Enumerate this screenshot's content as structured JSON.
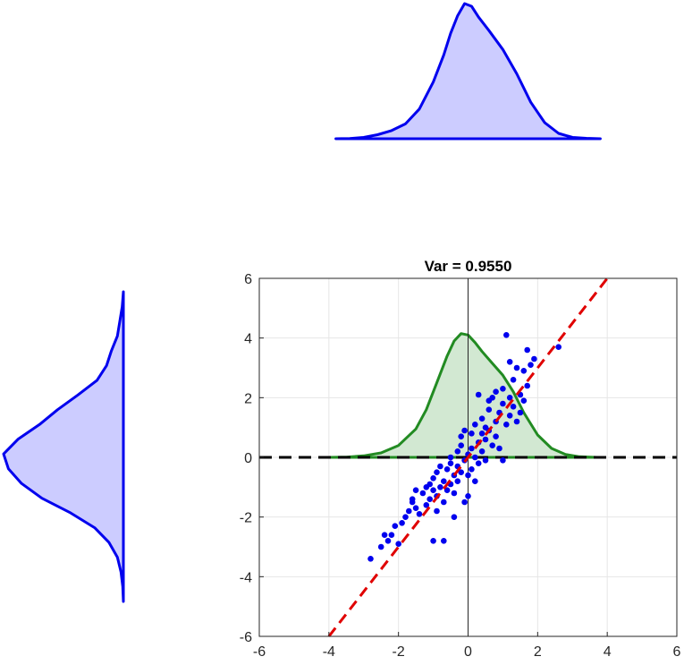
{
  "chart_data": [
    {
      "type": "area",
      "role": "top-marginal-density",
      "x": [
        -3.8,
        -3.4,
        -3.0,
        -2.6,
        -2.2,
        -1.8,
        -1.4,
        -1.0,
        -0.7,
        -0.5,
        -0.3,
        -0.1,
        0.1,
        0.3,
        0.6,
        1.0,
        1.4,
        1.8,
        2.2,
        2.6,
        3.0,
        3.4,
        3.8
      ],
      "values": [
        0.0,
        0.002,
        0.01,
        0.03,
        0.06,
        0.11,
        0.22,
        0.42,
        0.62,
        0.78,
        0.91,
        1.0,
        0.98,
        0.9,
        0.8,
        0.66,
        0.48,
        0.27,
        0.12,
        0.04,
        0.01,
        0.003,
        0.0
      ],
      "colors": {
        "line": "#0000ee",
        "fill": "#ccccff"
      }
    },
    {
      "type": "area",
      "role": "left-marginal-density",
      "y": [
        5.5,
        5.0,
        4.5,
        4.0,
        3.5,
        3.0,
        2.5,
        2.0,
        1.5,
        1.0,
        0.5,
        0.0,
        -0.5,
        -1.0,
        -1.5,
        -2.0,
        -2.5,
        -3.0,
        -3.5,
        -4.0,
        -4.5,
        -5.0
      ],
      "values": [
        0.0,
        0.01,
        0.03,
        0.05,
        0.1,
        0.14,
        0.22,
        0.38,
        0.55,
        0.7,
        0.88,
        1.0,
        0.96,
        0.85,
        0.68,
        0.44,
        0.24,
        0.12,
        0.05,
        0.02,
        0.005,
        0.0
      ],
      "colors": {
        "line": "#0000ee",
        "fill": "#ccccff"
      }
    },
    {
      "type": "scatter",
      "title": "Var = 0.9550",
      "xlim": [
        -6,
        6
      ],
      "ylim": [
        -6,
        6
      ],
      "xticks": [
        "-6",
        "-4",
        "-2",
        "0",
        "2",
        "4",
        "6"
      ],
      "yticks": [
        "6",
        "4",
        "2",
        "0",
        "-2",
        "-4",
        "-6"
      ],
      "grid": true,
      "points": [
        [
          -2.8,
          -3.4
        ],
        [
          -2.5,
          -3.0
        ],
        [
          -2.4,
          -2.6
        ],
        [
          -2.2,
          -2.6
        ],
        [
          -2.1,
          -2.3
        ],
        [
          -2.0,
          -2.9
        ],
        [
          -1.9,
          -2.2
        ],
        [
          -1.8,
          -2.0
        ],
        [
          -1.7,
          -1.8
        ],
        [
          -1.6,
          -1.4
        ],
        [
          -1.5,
          -1.7
        ],
        [
          -1.5,
          -1.1
        ],
        [
          -1.4,
          -1.9
        ],
        [
          -1.3,
          -1.2
        ],
        [
          -1.2,
          -1.0
        ],
        [
          -1.2,
          -1.6
        ],
        [
          -1.1,
          -0.9
        ],
        [
          -1.1,
          -1.4
        ],
        [
          -1.0,
          -2.8
        ],
        [
          -1.0,
          -1.1
        ],
        [
          -1.0,
          -0.7
        ],
        [
          -0.9,
          -1.3
        ],
        [
          -0.9,
          -0.5
        ],
        [
          -0.8,
          -1.0
        ],
        [
          -0.8,
          -0.3
        ],
        [
          -0.7,
          -2.8
        ],
        [
          -0.7,
          -1.5
        ],
        [
          -0.7,
          -0.8
        ],
        [
          -0.6,
          -0.4
        ],
        [
          -0.6,
          -1.1
        ],
        [
          -0.5,
          -0.9
        ],
        [
          -0.5,
          -0.2
        ],
        [
          -0.5,
          0.0
        ],
        [
          -0.4,
          -0.6
        ],
        [
          -0.4,
          -1.2
        ],
        [
          -0.3,
          -0.3
        ],
        [
          -0.3,
          0.2
        ],
        [
          -0.3,
          -0.8
        ],
        [
          -0.2,
          0.4
        ],
        [
          -0.2,
          -0.5
        ],
        [
          -0.2,
          0.7
        ],
        [
          -0.1,
          -0.1
        ],
        [
          -0.1,
          -1.5
        ],
        [
          0.0,
          0.1
        ],
        [
          0.0,
          -0.6
        ],
        [
          0.0,
          -1.3
        ],
        [
          0.1,
          0.3
        ],
        [
          0.1,
          0.8
        ],
        [
          0.1,
          -0.4
        ],
        [
          0.2,
          0.0
        ],
        [
          0.2,
          1.1
        ],
        [
          0.3,
          0.5
        ],
        [
          0.3,
          -0.2
        ],
        [
          0.4,
          0.2
        ],
        [
          0.4,
          1.3
        ],
        [
          0.4,
          0.8
        ],
        [
          0.5,
          0.6
        ],
        [
          0.5,
          -0.1
        ],
        [
          0.6,
          0.9
        ],
        [
          0.6,
          1.6
        ],
        [
          0.7,
          0.4
        ],
        [
          0.7,
          2.0
        ],
        [
          0.8,
          1.2
        ],
        [
          0.8,
          0.7
        ],
        [
          0.9,
          1.5
        ],
        [
          0.9,
          0.3
        ],
        [
          1.0,
          1.8
        ],
        [
          1.0,
          2.3
        ],
        [
          1.0,
          -0.1
        ],
        [
          1.1,
          1.1
        ],
        [
          1.1,
          4.1
        ],
        [
          1.2,
          1.4
        ],
        [
          1.2,
          2.0
        ],
        [
          1.3,
          1.7
        ],
        [
          1.3,
          2.6
        ],
        [
          1.4,
          1.2
        ],
        [
          1.4,
          3.0
        ],
        [
          1.5,
          1.5
        ],
        [
          1.5,
          2.1
        ],
        [
          1.6,
          2.9
        ],
        [
          1.6,
          1.9
        ],
        [
          1.7,
          3.6
        ],
        [
          1.7,
          2.4
        ],
        [
          1.8,
          3.1
        ],
        [
          1.9,
          3.3
        ],
        [
          2.6,
          3.7
        ],
        [
          -1.6,
          -1.5
        ],
        [
          -0.9,
          -1.8
        ],
        [
          -0.4,
          -2.0
        ],
        [
          0.2,
          -0.8
        ],
        [
          0.6,
          1.9
        ],
        [
          1.2,
          3.2
        ],
        [
          -2.3,
          -2.8
        ],
        [
          0.5,
          1.0
        ],
        [
          -0.1,
          0.9
        ],
        [
          0.3,
          2.1
        ],
        [
          0.8,
          2.2
        ]
      ],
      "reference_line": {
        "slope": 1.5,
        "intercept": 0,
        "style": "dashed",
        "color": "#e00000"
      },
      "horizontal_line": {
        "y": 0,
        "style": "dashed",
        "color": "#000000"
      },
      "density_overlay": {
        "x": [
          -4.0,
          -3.5,
          -3.0,
          -2.5,
          -2.0,
          -1.5,
          -1.2,
          -0.9,
          -0.6,
          -0.4,
          -0.2,
          0.0,
          0.2,
          0.4,
          0.7,
          1.0,
          1.3,
          1.6,
          2.0,
          2.4,
          2.8,
          3.2,
          3.7
        ],
        "y": [
          0.0,
          0.01,
          0.05,
          0.15,
          0.4,
          0.95,
          1.6,
          2.5,
          3.4,
          3.9,
          4.15,
          4.1,
          3.85,
          3.55,
          3.15,
          2.75,
          2.2,
          1.5,
          0.75,
          0.3,
          0.1,
          0.02,
          0.0
        ],
        "colors": {
          "line": "#228b22",
          "fill": "#d2e8d2"
        }
      },
      "colors": {
        "points": "#0000ee",
        "axes": "#262626",
        "grid": "#e6e6e6"
      }
    }
  ]
}
